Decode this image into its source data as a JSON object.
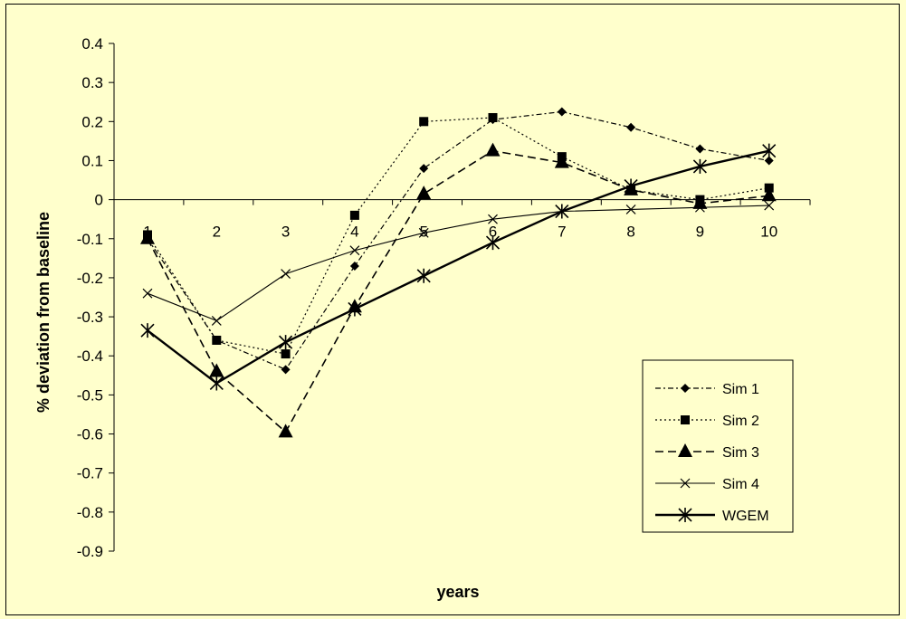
{
  "chart_data": {
    "type": "line",
    "xlabel": "years",
    "ylabel": "% deviation from baseline",
    "x": [
      1,
      2,
      3,
      4,
      5,
      6,
      7,
      8,
      9,
      10
    ],
    "ylim": [
      -0.9,
      0.4
    ],
    "yticks": [
      "0.4",
      "0.3",
      "0.2",
      "0.1",
      "0",
      "-0.1",
      "-0.2",
      "-0.3",
      "-0.4",
      "-0.5",
      "-0.6",
      "-0.7",
      "-0.8",
      "-0.9"
    ],
    "legend_position": "bottom-right",
    "series": [
      {
        "name": "Sim 1",
        "marker": "diamond",
        "dash": "6,3,2,3",
        "width": 1.2,
        "values": [
          -0.1,
          -0.36,
          -0.435,
          -0.17,
          0.08,
          0.205,
          0.225,
          0.185,
          0.13,
          0.1
        ]
      },
      {
        "name": "Sim 2",
        "marker": "square",
        "dash": "2,3",
        "width": 1.2,
        "values": [
          -0.09,
          -0.36,
          -0.395,
          -0.04,
          0.2,
          0.21,
          0.11,
          0.025,
          0.0,
          0.03
        ]
      },
      {
        "name": "Sim 3",
        "marker": "triangle",
        "dash": "9,5",
        "width": 1.6,
        "values": [
          -0.1,
          -0.44,
          -0.595,
          -0.275,
          0.015,
          0.125,
          0.095,
          0.025,
          -0.01,
          0.01
        ]
      },
      {
        "name": "Sim 4",
        "marker": "x",
        "dash": "",
        "width": 1.1,
        "values": [
          -0.24,
          -0.31,
          -0.19,
          -0.13,
          -0.085,
          -0.05,
          -0.03,
          -0.025,
          -0.02,
          -0.015
        ]
      },
      {
        "name": "WGEM",
        "marker": "star",
        "dash": "",
        "width": 2.4,
        "values": [
          -0.335,
          -0.47,
          -0.365,
          -0.28,
          -0.195,
          -0.11,
          -0.03,
          0.035,
          0.085,
          0.125
        ]
      }
    ]
  }
}
